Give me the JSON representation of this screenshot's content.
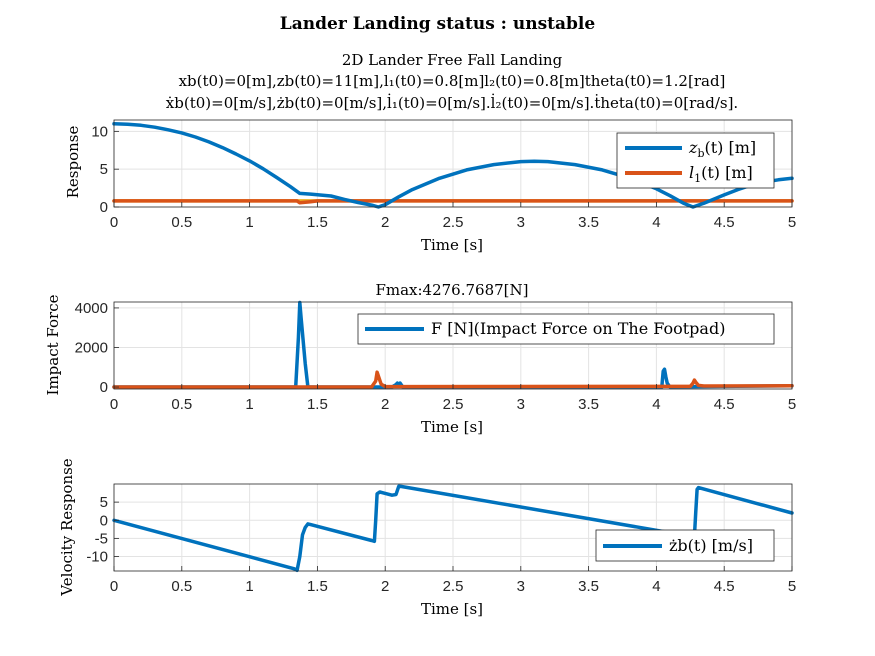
{
  "figure": {
    "suptitle": "Lander Landing status : unstable"
  },
  "chart_data": [
    {
      "type": "line",
      "title_lines": [
        "2D Lander Free Fall Landing",
        "xb(t0)=0[m],zb(t0)=11[m],l₁(t0)=0.8[m]l₂(t0)=0.8[m]theta(t0)=1.2[rad]",
        "ẋb(t0)=0[m/s],żb(t0)=0[m/s],l̇₁(t0)=0[m/s].l̇₂(t0)=0[m/s].ṫheta(t0)=0[rad/s]."
      ],
      "xlabel": "Time [s]",
      "ylabel": "Response",
      "xlim": [
        0,
        5
      ],
      "ylim": [
        0,
        11.5
      ],
      "xticks": [
        "0",
        "0.5",
        "1",
        "1.5",
        "2",
        "2.5",
        "3",
        "3.5",
        "4",
        "4.5",
        "5"
      ],
      "yticks": [
        "0",
        "5",
        "10"
      ],
      "ytick_values": [
        0,
        5,
        10
      ],
      "grid": true,
      "legend_position": "top-right",
      "series": [
        {
          "name": "z_b(t) [m]",
          "label_main": "z",
          "label_sub": "b",
          "label_rest": "(t) [m]",
          "color": "#0072BD",
          "x": [
            0,
            0.1,
            0.2,
            0.3,
            0.4,
            0.5,
            0.6,
            0.7,
            0.8,
            0.9,
            1.0,
            1.1,
            1.2,
            1.3,
            1.37,
            1.45,
            1.6,
            1.7,
            1.8,
            1.9,
            1.95,
            2.0,
            2.1,
            2.2,
            2.4,
            2.6,
            2.8,
            3.0,
            3.1,
            3.2,
            3.4,
            3.6,
            3.8,
            4.0,
            4.1,
            4.2,
            4.27,
            4.35,
            4.5,
            4.6,
            4.7,
            4.8,
            4.9,
            5.0
          ],
          "y": [
            11,
            10.95,
            10.8,
            10.55,
            10.2,
            9.8,
            9.25,
            8.6,
            7.85,
            7.0,
            6.1,
            5.05,
            3.9,
            2.7,
            1.8,
            1.7,
            1.45,
            1.0,
            0.6,
            0.25,
            0.0,
            0.3,
            1.35,
            2.3,
            3.8,
            4.9,
            5.6,
            6.0,
            6.05,
            6.0,
            5.6,
            4.9,
            3.85,
            2.4,
            1.5,
            0.5,
            0.0,
            0.5,
            1.6,
            2.3,
            2.9,
            3.3,
            3.6,
            3.8
          ]
        },
        {
          "name": "l_1(t) [m]",
          "label_main": "l",
          "label_sub": "1",
          "label_rest": "(t) [m]",
          "color": "#D95319",
          "x": [
            0,
            1.35,
            1.37,
            1.45,
            1.5,
            5.0
          ],
          "y": [
            0.8,
            0.8,
            0.55,
            0.7,
            0.8,
            0.8
          ]
        },
        {
          "name": "",
          "color": "#EDB120",
          "x": [
            0,
            5.0
          ],
          "y": [
            0.8,
            0.8
          ]
        }
      ]
    },
    {
      "type": "line",
      "title_lines": [
        "Fmax:4276.7687[N]"
      ],
      "xlabel": "Time [s]",
      "ylabel": "Impact Force",
      "xlim": [
        0,
        5
      ],
      "ylim": [
        -100,
        4300
      ],
      "xticks": [
        "0",
        "0.5",
        "1",
        "1.5",
        "2",
        "2.5",
        "3",
        "3.5",
        "4",
        "4.5",
        "5"
      ],
      "yticks": [
        "0",
        "2000",
        "4000"
      ],
      "ytick_values": [
        0,
        2000,
        4000
      ],
      "grid": true,
      "legend_position": "top-right",
      "series": [
        {
          "name": "F [N](Impact Force on The Footpad)",
          "label_main": "F [N](Impact Force on The Footpad)",
          "label_sub": "",
          "label_rest": "",
          "color": "#0072BD",
          "x": [
            0,
            1.34,
            1.36,
            1.37,
            1.38,
            1.41,
            1.43,
            1.45,
            2.05,
            2.08,
            2.09,
            2.1,
            2.11,
            2.13,
            4.04,
            4.05,
            4.06,
            4.07,
            4.08,
            4.1,
            4.3,
            5.0
          ],
          "y": [
            0,
            0,
            2500,
            4276.8,
            3500,
            1200,
            0,
            0,
            0,
            120,
            200,
            120,
            200,
            0,
            0,
            800,
            900,
            500,
            200,
            0,
            20,
            60
          ]
        },
        {
          "name": "",
          "color": "#D95319",
          "x": [
            0,
            1.9,
            1.93,
            1.94,
            1.95,
            1.97,
            2.0,
            4.25,
            4.27,
            4.28,
            4.29,
            4.31,
            4.35,
            5.0
          ],
          "y": [
            0,
            0,
            300,
            750,
            550,
            150,
            20,
            30,
            200,
            350,
            250,
            80,
            50,
            60
          ]
        }
      ]
    },
    {
      "type": "line",
      "title_lines": [],
      "xlabel": "Time [s]",
      "ylabel": "Velocity Response",
      "xlim": [
        0,
        5
      ],
      "ylim": [
        -14,
        10
      ],
      "xticks": [
        "0",
        "0.5",
        "1",
        "1.5",
        "2",
        "2.5",
        "3",
        "3.5",
        "4",
        "4.5",
        "5"
      ],
      "yticks": [
        "-10",
        "-5",
        "0",
        "5"
      ],
      "ytick_values": [
        -10,
        -5,
        0,
        5
      ],
      "grid": true,
      "legend_position": "bottom-right",
      "series": [
        {
          "name": "żb(t) [m/s]",
          "label_main": "żb(t) [m/s]",
          "label_sub": "",
          "label_rest": "",
          "color": "#0072BD",
          "x": [
            0,
            1.33,
            1.35,
            1.37,
            1.39,
            1.41,
            1.43,
            1.45,
            1.9,
            1.92,
            1.93,
            1.94,
            1.96,
            2.05,
            2.08,
            2.1,
            2.12,
            4.27,
            4.28,
            4.29,
            4.3,
            4.31,
            5.0
          ],
          "y": [
            0,
            -13.4,
            -13.8,
            -10,
            -4,
            -2,
            -1,
            -1.2,
            -5.6,
            -5.8,
            0,
            7.3,
            7.8,
            6.9,
            7.1,
            9.4,
            9.3,
            -4.5,
            -4.5,
            2,
            8.5,
            9.0,
            2.0
          ]
        }
      ]
    }
  ]
}
